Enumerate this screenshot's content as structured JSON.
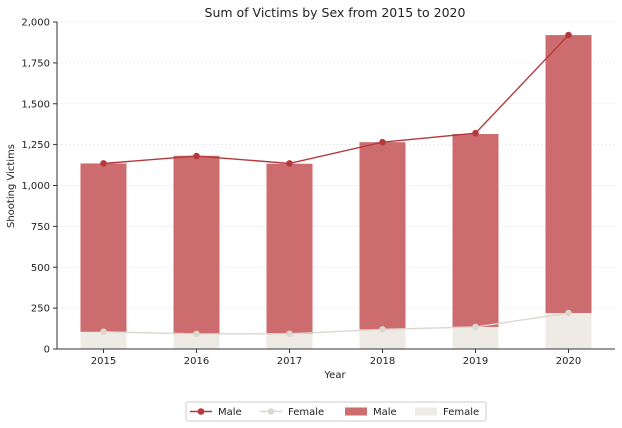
{
  "chart_data": {
    "type": "bar",
    "title": "Sum of Victims by Sex from 2015 to 2020",
    "xlabel": "Year",
    "ylabel": "Shooting Victims",
    "categories": [
      "2015",
      "2016",
      "2017",
      "2018",
      "2019",
      "2020"
    ],
    "ylim": [
      0,
      2000
    ],
    "yticks": [
      0,
      250,
      500,
      750,
      1000,
      1250,
      1500,
      1750,
      2000
    ],
    "ytick_labels": [
      "0",
      "250",
      "500",
      "750",
      "1,000",
      "1,250",
      "1,500",
      "1,750",
      "2,000"
    ],
    "grid": "horizontal dotted",
    "legend_position": "bottom-center",
    "stacked": true,
    "series": [
      {
        "name": "Male",
        "kind": "line",
        "color": "#b5393c",
        "values": [
          1135,
          1180,
          1135,
          1265,
          1320,
          1920
        ]
      },
      {
        "name": "Female",
        "kind": "line",
        "color": "#dcd8cf",
        "values": [
          105,
          92,
          93,
          120,
          135,
          220
        ]
      },
      {
        "name": "Male",
        "kind": "bar",
        "color": "#cd6c6e",
        "stacked_on": "Female",
        "values": [
          1030,
          1090,
          1040,
          1145,
          1180,
          1700
        ]
      },
      {
        "name": "Female",
        "kind": "bar",
        "color": "#edebe3",
        "values": [
          105,
          92,
          93,
          120,
          135,
          220
        ]
      }
    ]
  }
}
